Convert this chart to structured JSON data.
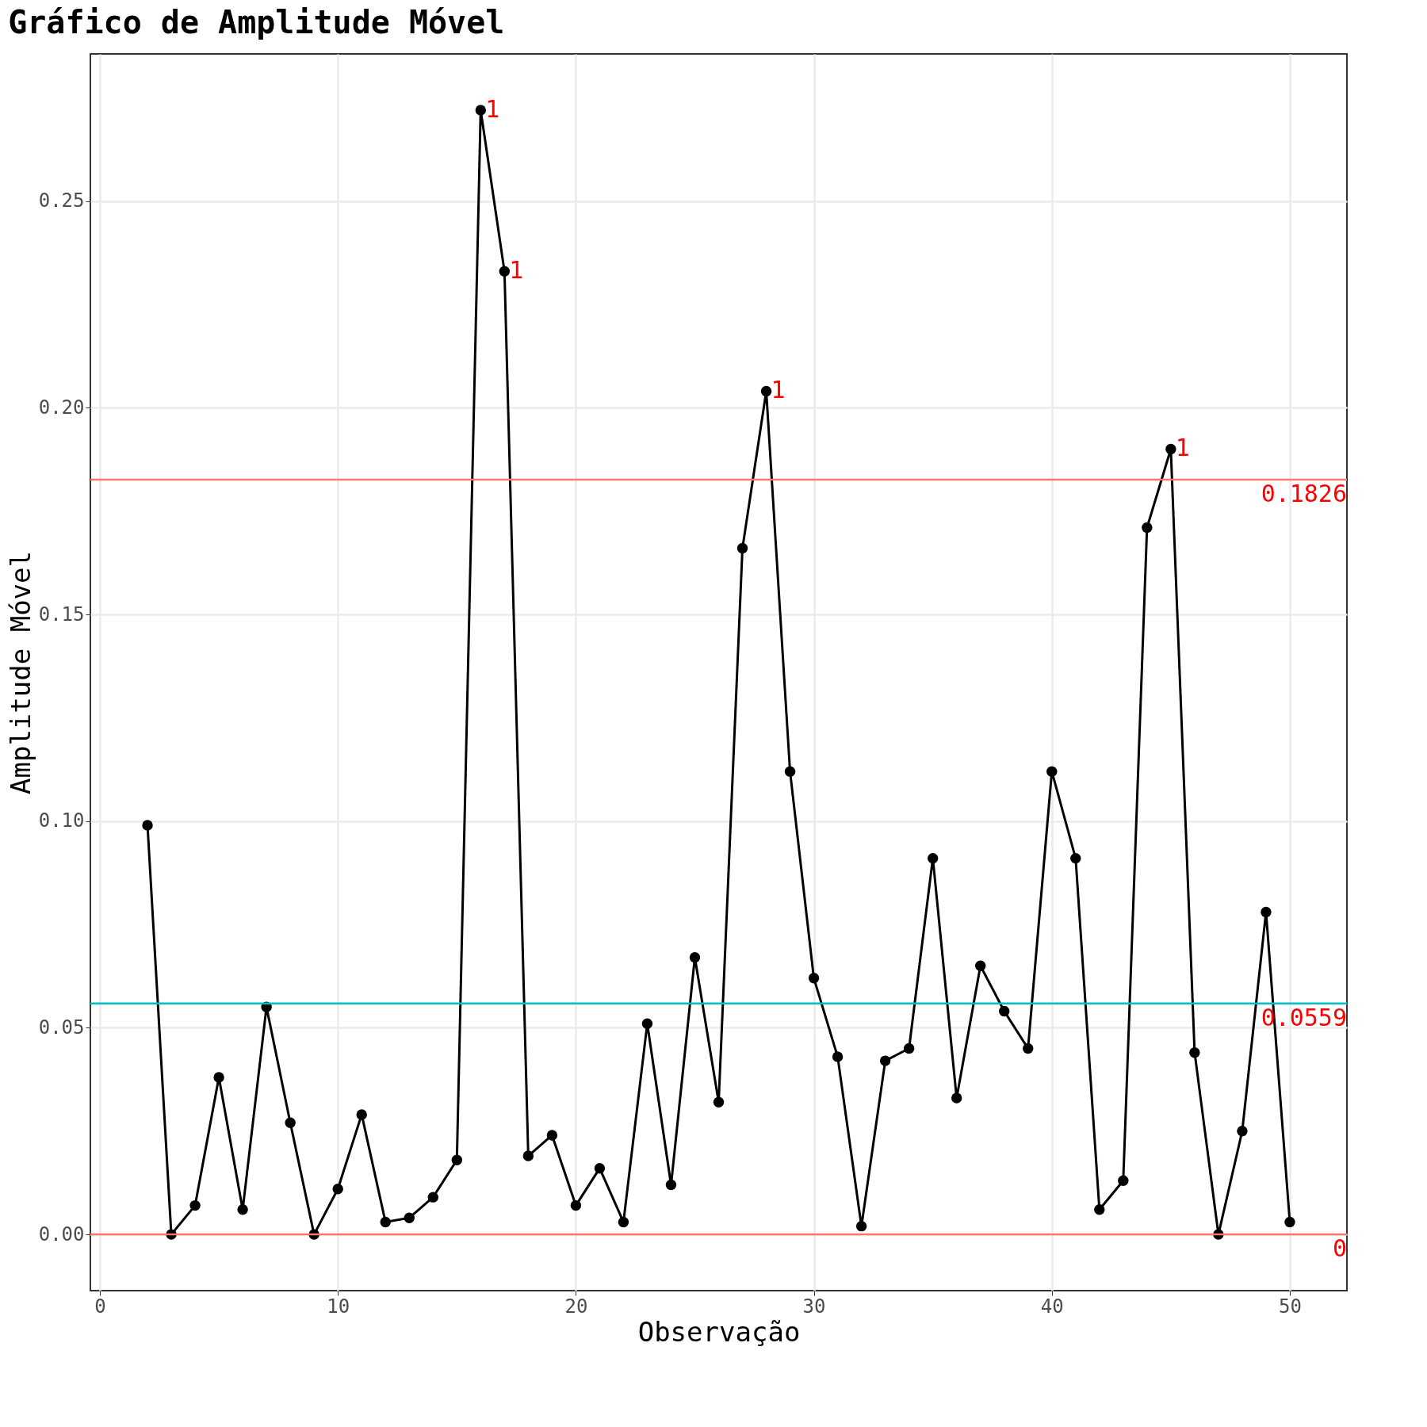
{
  "chart_data": {
    "type": "line",
    "title": "Gráfico de Amplitude Móvel",
    "xlabel": "Observação",
    "ylabel": "Amplitude Móvel",
    "x": [
      2,
      3,
      4,
      5,
      6,
      7,
      8,
      9,
      10,
      11,
      12,
      13,
      14,
      15,
      16,
      17,
      18,
      19,
      20,
      21,
      22,
      23,
      24,
      25,
      26,
      27,
      28,
      29,
      30,
      31,
      32,
      33,
      34,
      35,
      36,
      37,
      38,
      39,
      40,
      41,
      42,
      43,
      44,
      45,
      46,
      47,
      48,
      49,
      50
    ],
    "series": [
      {
        "color": "#000000",
        "values": [
          0.099,
          0,
          0.007,
          0.038,
          0.006,
          0.055,
          0.027,
          0,
          0.011,
          0.029,
          0.003,
          0.004,
          0.009,
          0.018,
          0.272,
          0.233,
          0.019,
          0.024,
          0.007,
          0.016,
          0.003,
          0.051,
          0.012,
          0.067,
          0.032,
          0.166,
          0.204,
          0.112,
          0.062,
          0.043,
          0.002,
          0.042,
          0.045,
          0.091,
          0.033,
          0.065,
          0.054,
          0.045,
          0.112,
          0.091,
          0.006,
          0.013,
          0.171,
          0.19,
          0.044,
          0,
          0.025,
          0.078,
          0.003
        ]
      }
    ],
    "xlim": [
      -0.4,
      52.4
    ],
    "xticks": [
      0,
      10,
      20,
      30,
      40,
      50
    ],
    "ylim": [
      -0.0136,
      0.2856
    ],
    "yticks": [
      {
        "value": 0,
        "label": "0.00"
      },
      0.05,
      {
        "value": 0.1,
        "label": "0.10"
      },
      0.15,
      {
        "value": 0.2,
        "label": "0.20"
      },
      0.25
    ],
    "ref_lines": [
      {
        "axis": "y",
        "value": 0.1826,
        "label": "0.1826",
        "color": "#f8766d"
      },
      {
        "axis": "y",
        "value": 0.0559,
        "label": "0.0559",
        "color": "#00bfc4"
      },
      {
        "axis": "y",
        "value": 0,
        "label": "0",
        "color": "#f8766d"
      }
    ],
    "annotations": [
      {
        "text": "1",
        "x": 16,
        "y": 0.272
      },
      {
        "text": "1",
        "x": 17,
        "y": 0.233
      },
      {
        "text": "1",
        "x": 28,
        "y": 0.204
      },
      {
        "text": "1",
        "x": 45,
        "y": 0.19
      }
    ],
    "grid": true,
    "marker": "circle",
    "line_style": "solid"
  }
}
